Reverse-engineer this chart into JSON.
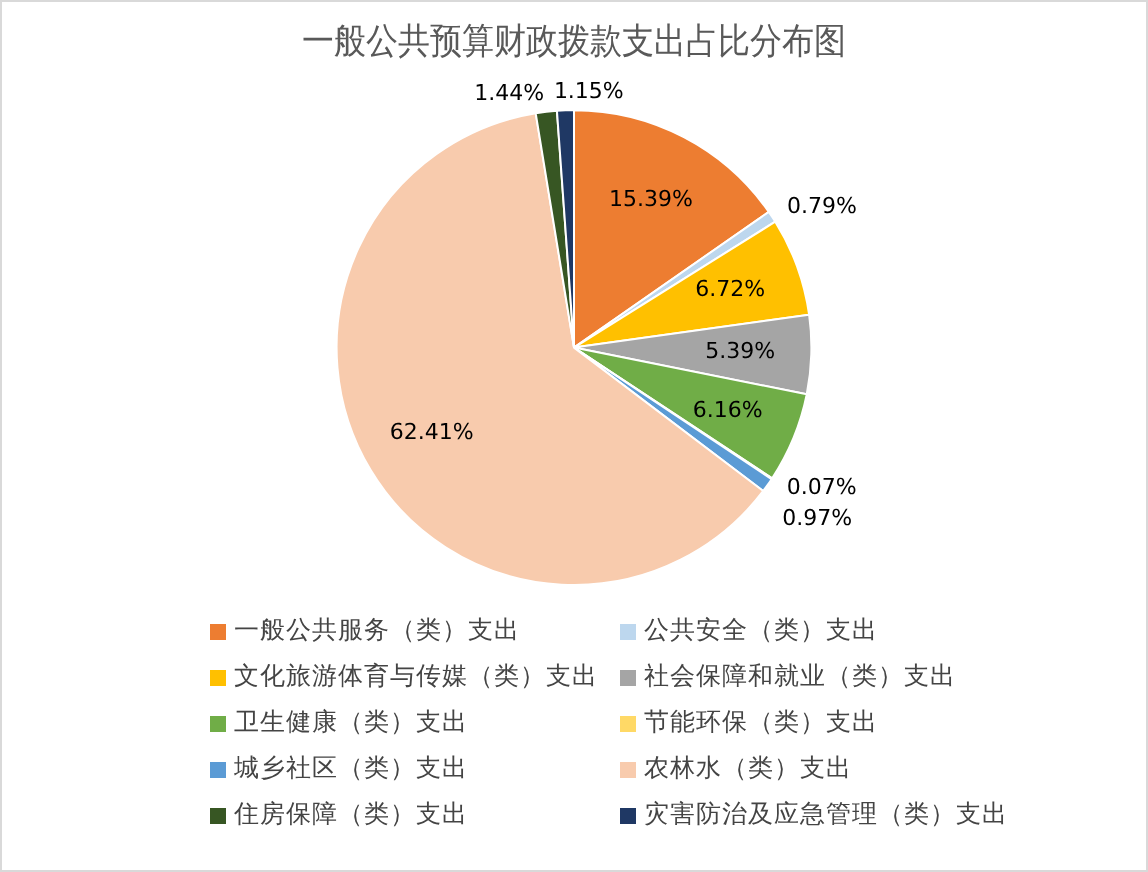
{
  "chart_data": {
    "type": "pie",
    "title": "一般公共预算财政拨款支出占比分布图",
    "categories": [
      "一般公共服务（类）支出",
      "公共安全（类）支出",
      "文化旅游体育与传媒（类）支出",
      "社会保障和就业（类）支出",
      "卫生健康（类）支出",
      "节能环保（类）支出",
      "城乡社区（类）支出",
      "农林水（类）支出",
      "住房保障（类）支出",
      "灾害防治及应急管理（类）支出"
    ],
    "values": [
      15.39,
      0.79,
      6.72,
      5.39,
      6.16,
      0.07,
      0.97,
      62.41,
      1.44,
      1.15
    ],
    "colors": [
      "#ed7d31",
      "#bdd7ee",
      "#ffc000",
      "#a5a5a5",
      "#70ad47",
      "#ffd966",
      "#5b9bd5",
      "#f8cbad",
      "#375623",
      "#1f3864"
    ],
    "value_labels": [
      "15.39%",
      "0.79%",
      "6.72%",
      "5.39%",
      "6.16%",
      "0.07%",
      "0.97%",
      "62.41%",
      "1.44%",
      "1.15%"
    ],
    "legend": "bottom"
  }
}
